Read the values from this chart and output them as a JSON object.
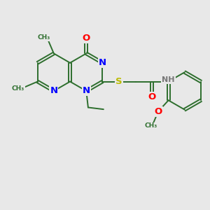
{
  "bg_color": "#e8e8e8",
  "bond_color": "#2d6e2d",
  "bond_width": 1.4,
  "N_color": "#0000ff",
  "O_color": "#ff0000",
  "S_color": "#bbbb00",
  "H_color": "#777777",
  "C_color": "#2d6e2d",
  "fontsize": 8.5,
  "xlim": [
    -0.5,
    10.5
  ],
  "ylim": [
    -1.5,
    8.0
  ]
}
